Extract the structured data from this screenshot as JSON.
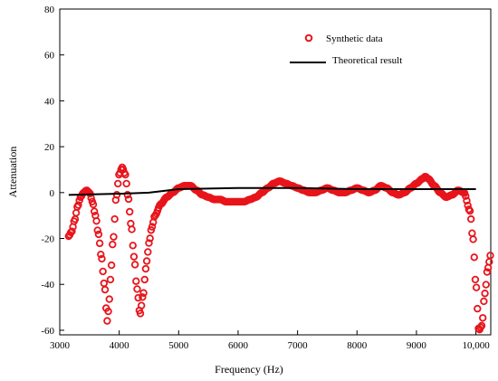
{
  "chart_data": {
    "type": "scatter",
    "title": "",
    "xlabel": "Frequency (Hz)",
    "ylabel": "Attenuation",
    "xlim": [
      3000,
      10250
    ],
    "ylim": [
      -62,
      80
    ],
    "x_ticks": [
      3000,
      4000,
      5000,
      6000,
      7000,
      8000,
      9000,
      10000
    ],
    "x_tick_labels": [
      "3000",
      "4000",
      "5000",
      "6000",
      "7000",
      "8000",
      "9000",
      "10,000"
    ],
    "y_ticks": [
      80,
      60,
      40,
      20,
      0,
      -20,
      -40,
      -60
    ],
    "y_tick_labels": [
      "80",
      "60",
      "40",
      "20",
      "0",
      "-20",
      "-40",
      "-60"
    ],
    "grid": false,
    "legend_position": "top-right",
    "colors": {
      "synthetic": "#e8141b",
      "theoretical": "#000000"
    },
    "series": [
      {
        "name": "Synthetic data",
        "style": "open-circle",
        "x": [
          3150,
          3200,
          3250,
          3300,
          3350,
          3400,
          3450,
          3500,
          3550,
          3600,
          3650,
          3700,
          3750,
          3800,
          3825,
          3850,
          3900,
          3950,
          4000,
          4050,
          4100,
          4150,
          4200,
          4250,
          4300,
          4350,
          4400,
          4450,
          4480,
          4500,
          4550,
          4600,
          4700,
          4800,
          4900,
          5000,
          5100,
          5200,
          5300,
          5400,
          5500,
          5600,
          5700,
          5800,
          5900,
          6000,
          6100,
          6200,
          6300,
          6400,
          6500,
          6600,
          6700,
          6800,
          6900,
          7000,
          7100,
          7200,
          7300,
          7400,
          7500,
          7600,
          7700,
          7800,
          7900,
          8000,
          8100,
          8200,
          8300,
          8400,
          8500,
          8600,
          8700,
          8800,
          8900,
          9000,
          9100,
          9150,
          9200,
          9300,
          9400,
          9500,
          9600,
          9700,
          9800,
          9900,
          9950,
          10000,
          10050,
          10100,
          10150,
          10200,
          10250
        ],
        "y": [
          -19,
          -17,
          -12,
          -6,
          -2,
          0,
          1,
          0,
          -4,
          -10,
          -18,
          -28,
          -40,
          -56,
          -50,
          -38,
          -20,
          -2,
          8,
          11,
          8,
          -2,
          -14,
          -28,
          -42,
          -53,
          -45,
          -33,
          -26,
          -22,
          -15,
          -10,
          -5,
          -2,
          0,
          2,
          3,
          3,
          1,
          -1,
          -2,
          -3,
          -3,
          -4,
          -4,
          -4,
          -4,
          -3,
          -2,
          0,
          2,
          4,
          5,
          4,
          3,
          2,
          1,
          0,
          0,
          1,
          2,
          1,
          0,
          0,
          1,
          2,
          1,
          0,
          1,
          3,
          2,
          0,
          -1,
          0,
          2,
          4,
          6,
          7,
          6,
          3,
          0,
          -2,
          -1,
          1,
          0,
          -8,
          -20,
          -40,
          -60,
          -58,
          -44,
          -33,
          -27
        ]
      },
      {
        "name": "Theoretical result",
        "style": "line",
        "x": [
          3150,
          4000,
          4500,
          5000,
          6000,
          7000,
          8000,
          9000,
          10000
        ],
        "y": [
          -1,
          -0.5,
          0,
          1.5,
          2,
          2,
          1.5,
          1.5,
          1.5
        ]
      }
    ]
  }
}
